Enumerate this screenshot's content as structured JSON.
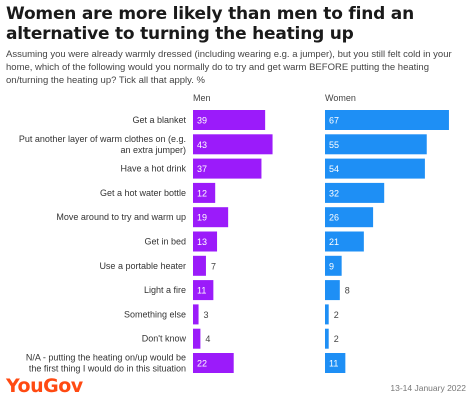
{
  "title": "Women are more likely than men to find an alternative to turning the heating up",
  "subtitle": "Assuming you were already warmly dressed (including wearing e.g. a jumper), but you still felt cold in your home, which of the following would you normally do to try and get warm BEFORE putting the heating on/turning the heating up? Tick all that apply. %",
  "footer": {
    "brand": "YouGov",
    "date": "13-14 January 2022"
  },
  "colors": {
    "men": "#9b1bfa",
    "women": "#1e8ff5"
  },
  "chart_data": {
    "type": "bar",
    "orientation": "horizontal",
    "categories": [
      [
        "Get a blanket"
      ],
      [
        "Put another layer of warm clothes on (e.g.",
        "an extra jumper)"
      ],
      [
        "Have a hot drink"
      ],
      [
        "Get a hot water bottle"
      ],
      [
        "Move around to try and warm up"
      ],
      [
        "Get in bed"
      ],
      [
        "Use a portable heater"
      ],
      [
        "Light a fire"
      ],
      [
        "Something else"
      ],
      [
        "Don't know"
      ],
      [
        "N/A - putting the heating on/up would be",
        "the first thing I would do in this situation"
      ]
    ],
    "series": [
      {
        "name": "Men",
        "values": [
          39,
          43,
          37,
          12,
          19,
          13,
          7,
          11,
          3,
          4,
          22
        ]
      },
      {
        "name": "Women",
        "values": [
          67,
          55,
          54,
          32,
          26,
          21,
          9,
          8,
          2,
          2,
          11
        ]
      }
    ]
  }
}
